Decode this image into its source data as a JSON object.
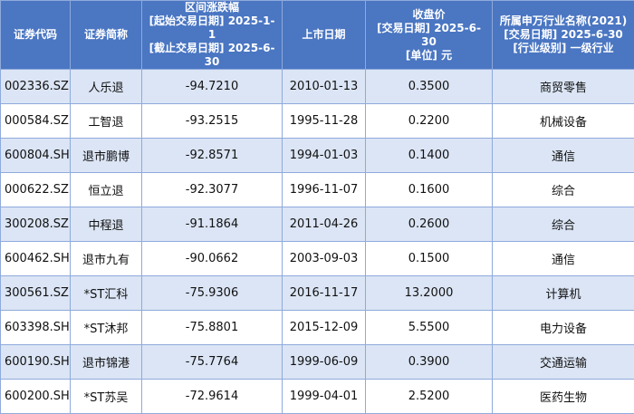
{
  "table": {
    "headers": [
      {
        "lines": [
          "证券代码"
        ]
      },
      {
        "lines": [
          "证券简称"
        ]
      },
      {
        "lines": [
          "区间涨跌幅",
          "[起始交易日期] 2025-1-1",
          "[截止交易日期] 2025-6-",
          "30"
        ]
      },
      {
        "lines": [
          "上市日期"
        ]
      },
      {
        "lines": [
          "收盘价",
          "[交易日期] 2025-6-30",
          "[单位] 元"
        ]
      },
      {
        "lines": [
          "所属申万行业名称(2021)",
          "[交易日期] 2025-6-30",
          "[行业级别] 一级行业"
        ]
      }
    ],
    "rows": [
      [
        "002336.SZ",
        "人乐退",
        "-94.7210",
        "2010-01-13",
        "0.3500",
        "商贸零售"
      ],
      [
        "000584.SZ",
        "工智退",
        "-93.2515",
        "1995-11-28",
        "0.2200",
        "机械设备"
      ],
      [
        "600804.SH",
        "退市鹏博",
        "-92.8571",
        "1994-01-03",
        "0.1400",
        "通信"
      ],
      [
        "000622.SZ",
        "恒立退",
        "-92.3077",
        "1996-11-07",
        "0.1600",
        "综合"
      ],
      [
        "300208.SZ",
        "中程退",
        "-91.1864",
        "2011-04-26",
        "0.2600",
        "综合"
      ],
      [
        "600462.SH",
        "退市九有",
        "-90.0662",
        "2003-09-03",
        "0.1500",
        "通信"
      ],
      [
        "300561.SZ",
        "*ST汇科",
        "-75.9306",
        "2016-11-17",
        "13.2000",
        "计算机"
      ],
      [
        "603398.SH",
        "*ST沐邦",
        "-75.8801",
        "2015-12-09",
        "5.5500",
        "电力设备"
      ],
      [
        "600190.SH",
        "退市锦港",
        "-75.7764",
        "1999-06-09",
        "0.3900",
        "交通运输"
      ],
      [
        "600200.SH",
        "*ST苏吴",
        "-72.9614",
        "1999-04-01",
        "2.5200",
        "医药生物"
      ]
    ]
  }
}
